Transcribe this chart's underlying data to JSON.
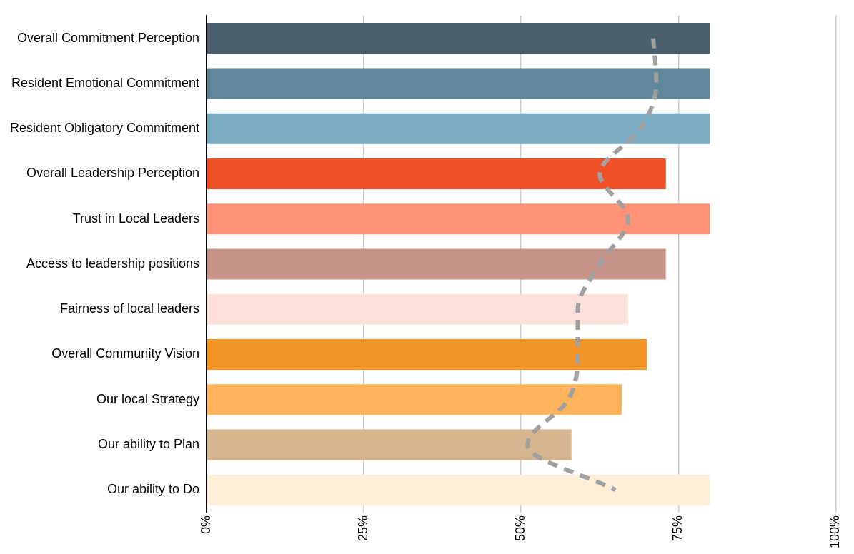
{
  "chart_data": {
    "type": "bar",
    "orientation": "horizontal",
    "categories": [
      "Overall Commitment Perception",
      "Resident Emotional Commitment",
      "Resident Obligatory Commitment",
      "Overall Leadership Perception",
      "Trust in Local Leaders",
      "Access to leadership positions",
      "Fairness of local leaders",
      "Overall Community Vision",
      "Our local Strategy",
      "Our ability to Plan",
      "Our ability to Do"
    ],
    "series": [
      {
        "values": [
          80,
          80,
          80,
          73,
          80,
          73,
          67,
          70,
          66,
          58,
          80
        ],
        "colors": [
          "#4a5f6b",
          "#5f8799",
          "#7aabc3",
          "#f05127",
          "#ff9377",
          "#c99488",
          "#fde0da",
          "#f39626",
          "#ffb35a",
          "#d6b48e",
          "#ffeed8"
        ]
      },
      {
        "type": "line",
        "color": "#a0a0a0",
        "line_style": "dashed",
        "marker": "none",
        "values": [
          71,
          71.5,
          69,
          62.5,
          67,
          62.5,
          59,
          59,
          57.5,
          51,
          65
        ]
      }
    ],
    "xlim": [
      0,
      100
    ],
    "xticks": [
      {
        "value": 0,
        "label": "0%"
      },
      {
        "value": 25,
        "label": "25%"
      },
      {
        "value": 50,
        "label": "50%"
      },
      {
        "value": 75,
        "label": "75%"
      },
      {
        "value": 100,
        "label": "100%"
      }
    ],
    "grid": "x",
    "legend": false
  }
}
